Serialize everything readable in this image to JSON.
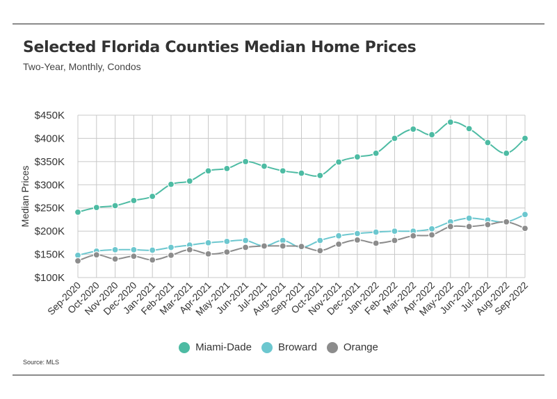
{
  "header": {
    "title": "Selected Florida Counties Median Home Prices",
    "subtitle": "Two-Year, Monthly, Condos"
  },
  "source": "Source:  MLS",
  "chart_data": {
    "type": "line",
    "title": "Selected Florida Counties Median Home Prices",
    "subtitle": "Two-Year, Monthly, Condos",
    "xlabel": "",
    "ylabel": "Median Prices",
    "ylim": [
      100000,
      450000
    ],
    "yticks": [
      100000,
      150000,
      200000,
      250000,
      300000,
      350000,
      400000,
      450000
    ],
    "ytick_labels": [
      "$100K",
      "$150K",
      "$200K",
      "$250K",
      "$300K",
      "$350K",
      "$400K",
      "$450K"
    ],
    "grid": "vertical and horizontal",
    "legend_position": "bottom-center",
    "categories": [
      "Sep-2020",
      "Oct-2020",
      "Nov-2020",
      "Dec-2020",
      "Jan-2021",
      "Feb-2021",
      "Mar-2021",
      "Apr-2021",
      "May-2021",
      "Jun-2021",
      "Jul-2021",
      "Aug-2021",
      "Sep-2021",
      "Oct-2021",
      "Nov-2021",
      "Dec-2021",
      "Jan-2022",
      "Feb-2022",
      "Mar-2022",
      "Apr-2022",
      "May-2022",
      "Jun-2022",
      "Jul-2022",
      "Aug-2022",
      "Sep-2022"
    ],
    "series": [
      {
        "name": "Miami-Dade",
        "color": "#4dbba3",
        "values": [
          241000,
          251000,
          255000,
          266000,
          275000,
          301000,
          308000,
          330000,
          335000,
          350000,
          340000,
          330000,
          325000,
          320000,
          349000,
          360000,
          368000,
          400000,
          420000,
          408000,
          435000,
          421000,
          391000,
          368000,
          400000
        ]
      },
      {
        "name": "Broward",
        "color": "#6cc7cf",
        "values": [
          148000,
          157000,
          160000,
          160000,
          159000,
          165000,
          170000,
          175000,
          178000,
          180000,
          168000,
          180000,
          165000,
          180000,
          190000,
          195000,
          198000,
          200000,
          200000,
          205000,
          220000,
          228000,
          224000,
          220000,
          236000
        ]
      },
      {
        "name": "Orange",
        "color": "#8c8c8c",
        "values": [
          136000,
          149000,
          140000,
          146000,
          138000,
          148000,
          160000,
          151000,
          155000,
          165000,
          168000,
          168000,
          167000,
          158000,
          172000,
          181000,
          174000,
          180000,
          190000,
          192000,
          210000,
          210000,
          214000,
          220000,
          206000
        ]
      }
    ]
  },
  "colors": {
    "grid": "#c8c8c8",
    "rule": "#222222"
  }
}
